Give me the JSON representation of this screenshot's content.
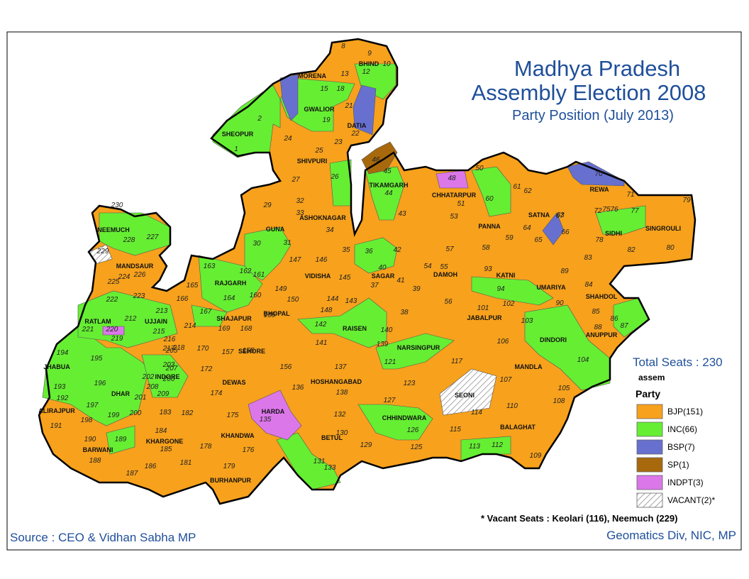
{
  "header": {
    "title_line1": "Madhya Pradesh",
    "title_line2": "Assembly Election 2008",
    "subtitle": "Party Position (July 2013)"
  },
  "total_seats": "Total Seats : 230",
  "legend": {
    "layer": "assem",
    "title": "Party",
    "items": [
      {
        "label": "BJP(151)",
        "color": "#f7a11c"
      },
      {
        "label": "INC(66)",
        "color": "#66ee33"
      },
      {
        "label": "BSP(7)",
        "color": "#6770cf"
      },
      {
        "label": "SP(1)",
        "color": "#a7690c"
      },
      {
        "label": "INDPT(3)",
        "color": "#dc77ea"
      },
      {
        "label": "VACANT(2)*",
        "color": "#ffffff",
        "hatched": true
      }
    ]
  },
  "vacant_note": "* Vacant Seats : Keolari (116), Neemuch (229)",
  "source": "Source : CEO & Vidhan Sabha MP",
  "credit": "Geomatics Div, NIC, MP",
  "districts": [
    "MORENA",
    "BHIND",
    "GWALIOR",
    "DATIA",
    "SHEOPUR",
    "SHIVPURI",
    "TIKAMGARH",
    "CHHATARPUR",
    "PANNA",
    "SATNA",
    "REWA",
    "SIDHI",
    "SINGROULI",
    "NEEMUCH",
    "MANDSAUR",
    "GUNA",
    "ASHOKNAGAR",
    "RAJGARH",
    "VIDISHA",
    "SAGAR",
    "DAMOH",
    "KATNI",
    "UMARIYA",
    "SHAHDOL",
    "RATLAM",
    "UJJAIN",
    "SHAJAPUR",
    "BHOPAL",
    "RAISEN",
    "JABALPUR",
    "ANUPPUR",
    "DINDORI",
    "JHABUA",
    "SEHORE",
    "NARSINGPUR",
    "MANDLA",
    "INDORE",
    "DEWAS",
    "HOSHANGABAD",
    "SEONI",
    "DHAR",
    "ALIRAJPUR",
    "HARDA",
    "CHHINDWARA",
    "BALAGHAT",
    "KHARGONE",
    "BARWANI",
    "KHANDWA",
    "BETUL",
    "BURHANPUR"
  ],
  "seats": [
    1,
    2,
    8,
    9,
    10,
    12,
    13,
    15,
    18,
    19,
    21,
    22,
    23,
    24,
    25,
    26,
    27,
    29,
    30,
    31,
    32,
    33,
    34,
    35,
    36,
    37,
    38,
    39,
    40,
    41,
    42,
    43,
    44,
    45,
    46,
    48,
    50,
    51,
    53,
    54,
    55,
    56,
    57,
    58,
    59,
    60,
    61,
    62,
    63,
    64,
    65,
    66,
    67,
    70,
    71,
    72,
    75,
    76,
    77,
    78,
    79,
    80,
    82,
    83,
    84,
    85,
    86,
    87,
    88,
    89,
    90,
    93,
    94,
    101,
    102,
    103,
    104,
    105,
    106,
    107,
    108,
    109,
    110,
    112,
    113,
    114,
    115,
    117,
    121,
    123,
    125,
    126,
    127,
    129,
    130,
    131,
    132,
    133,
    135,
    136,
    137,
    138,
    139,
    140,
    141,
    142,
    143,
    144,
    145,
    146,
    147,
    148,
    149,
    150,
    155,
    156,
    157,
    159,
    160,
    161,
    162,
    163,
    164,
    165,
    166,
    167,
    168,
    169,
    170,
    172,
    174,
    175,
    176,
    178,
    179,
    181,
    182,
    183,
    184,
    185,
    186,
    187,
    188,
    189,
    190,
    191,
    192,
    193,
    194,
    195,
    196,
    197,
    198,
    199,
    200,
    201,
    202,
    203,
    205,
    206,
    207,
    208,
    209,
    212,
    213,
    214,
    215,
    216,
    217,
    218,
    219,
    220,
    221,
    222,
    223,
    224,
    225,
    226,
    227,
    228,
    229,
    230
  ]
}
